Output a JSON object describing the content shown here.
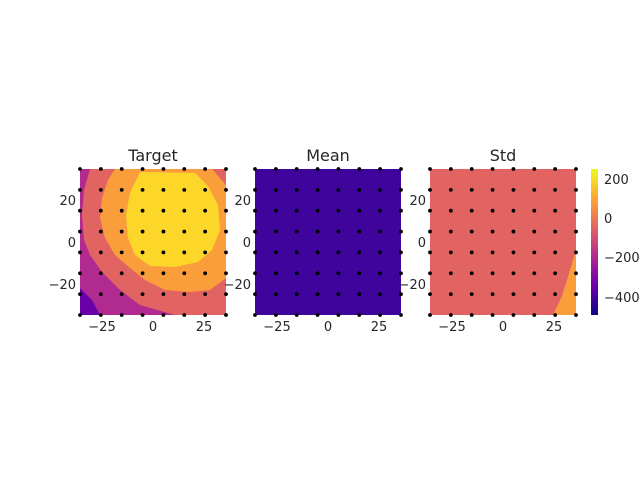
{
  "chart_data": {
    "type": "contour",
    "colormap": "plasma",
    "marker_color": "#000000",
    "x_ticks": [
      "−25",
      "0",
      "25"
    ],
    "y_ticks": [
      "20",
      "0",
      "−20"
    ],
    "xlim": [
      -35,
      35
    ],
    "ylim": [
      -35,
      35
    ],
    "grid_points": {
      "x": [
        -35,
        -25,
        -15,
        -5,
        5,
        15,
        25,
        35
      ],
      "y": [
        -35,
        -25,
        -15,
        -5,
        5,
        15,
        25,
        35
      ]
    },
    "colorbar": {
      "range": [
        -480,
        260
      ],
      "ticks": [
        "200",
        "0",
        "−200",
        "−400"
      ]
    },
    "panels": [
      {
        "title": "Target",
        "regions": [
          {
            "level": -350,
            "color": "#6a00a8"
          },
          {
            "level": -200,
            "color": "#b12a90"
          },
          {
            "level": 0,
            "color": "#e16462"
          },
          {
            "level": 100,
            "color": "#fa9e3b"
          },
          {
            "level": 220,
            "color": "#fdd62a"
          }
        ]
      },
      {
        "title": "Mean",
        "regions": [
          {
            "level": -450,
            "color": "#3e049c"
          }
        ]
      },
      {
        "title": "Std",
        "regions": [
          {
            "level": 0,
            "color": "#e16462"
          },
          {
            "level": 100,
            "color": "#fa9e3b"
          }
        ]
      }
    ]
  }
}
